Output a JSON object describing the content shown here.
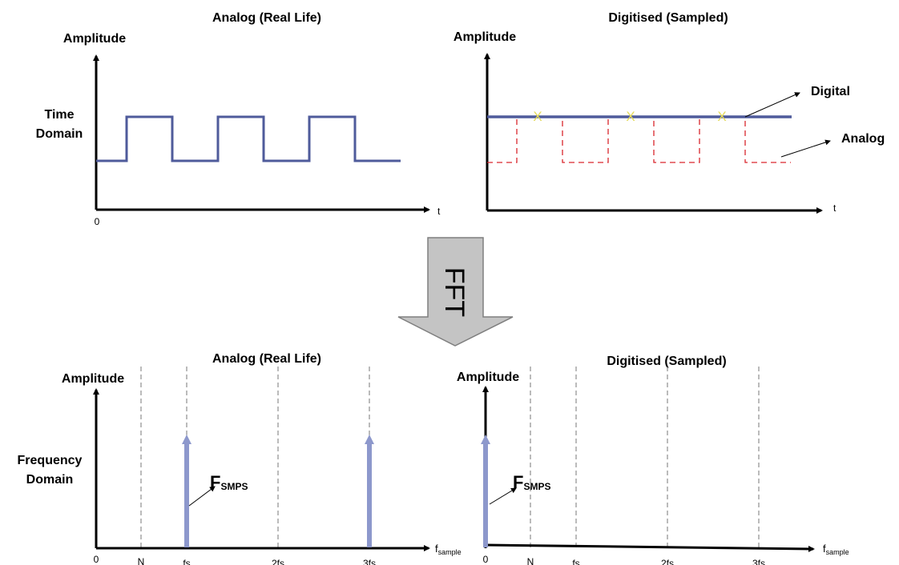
{
  "top_left": {
    "title": "Analog (Real Life)",
    "y_axis_label": "Amplitude",
    "row_label_line1": "Time",
    "row_label_line2": "Domain",
    "origin_label": "0",
    "x_axis_label": "t"
  },
  "top_right": {
    "title": "Digitised (Sampled)",
    "y_axis_label": "Amplitude",
    "x_axis_label": "t",
    "digital_label": "Digital",
    "analog_label": "Analog",
    "sample_marker": "X"
  },
  "arrow": {
    "label": "FFT"
  },
  "bottom_left": {
    "title": "Analog (Real Life)",
    "y_axis_label": "Amplitude",
    "row_label_line1": "Frequency",
    "row_label_line2": "Domain",
    "ticks": [
      "0",
      "N",
      "fs",
      "2fs",
      "3fs"
    ],
    "spike_label_main": "F",
    "spike_label_sub": "SMPS",
    "x_axis_label_main": "f",
    "x_axis_label_sub": "sample"
  },
  "bottom_right": {
    "title": "Digitised (Sampled)",
    "y_axis_label": "Amplitude",
    "ticks": [
      "0",
      "N",
      "fs",
      "2fs",
      "3fs"
    ],
    "spike_label_main": "F",
    "spike_label_sub": "SMPS",
    "x_axis_label_main": "f",
    "x_axis_label_sub": "sample"
  },
  "colors": {
    "signal": "#4f5b9b",
    "spike": "#8d98cc",
    "analog_dashed": "#d9262d",
    "marker": "#e6dc5c",
    "axis": "#000000",
    "grid_dashed": "#777777",
    "arrow_fill": "#c4c4c4",
    "arrow_stroke": "#7f7f7f"
  }
}
